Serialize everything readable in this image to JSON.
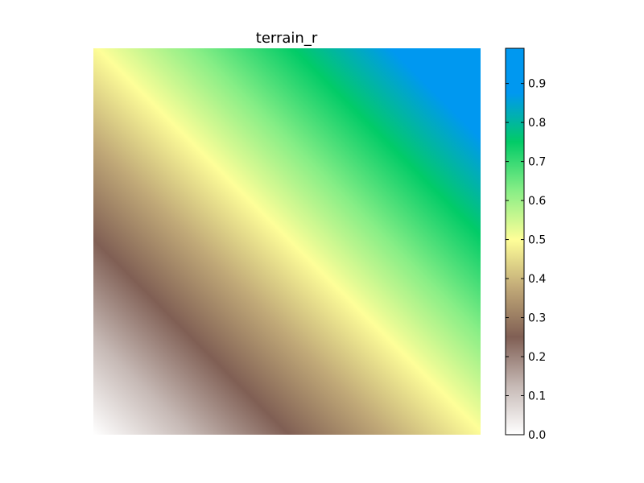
{
  "chart_data": {
    "type": "heatmap",
    "title": "terrain_r",
    "colormap": "terrain_r",
    "description_of_field": "linear gradient increasing from bottom-left (0.0) to top-right (~0.99)",
    "grid": false,
    "axes_visible": false,
    "field": {
      "corner_bottom_left": 0.0,
      "corner_top_right": 0.99
    },
    "colorbar": {
      "position": "right",
      "range": [
        0.0,
        0.99
      ],
      "ticks": [
        {
          "value": 0.0,
          "label": "0.0"
        },
        {
          "value": 0.1,
          "label": "0.1"
        },
        {
          "value": 0.2,
          "label": "0.2"
        },
        {
          "value": 0.3,
          "label": "0.3"
        },
        {
          "value": 0.4,
          "label": "0.4"
        },
        {
          "value": 0.5,
          "label": "0.5"
        },
        {
          "value": 0.6,
          "label": "0.6"
        },
        {
          "value": 0.7,
          "label": "0.7"
        },
        {
          "value": 0.8,
          "label": "0.8"
        },
        {
          "value": 0.9,
          "label": "0.9"
        }
      ]
    },
    "color_stops": [
      {
        "value": 0.0,
        "color": "#ffffff"
      },
      {
        "value": 0.125,
        "color": "#c6b9b5"
      },
      {
        "value": 0.25,
        "color": "#805f54"
      },
      {
        "value": 0.375,
        "color": "#c0a877"
      },
      {
        "value": 0.5,
        "color": "#fefe98"
      },
      {
        "value": 0.625,
        "color": "#88ee86"
      },
      {
        "value": 0.75,
        "color": "#02cb67"
      },
      {
        "value": 0.875,
        "color": "#0098f0"
      },
      {
        "value": 1.0,
        "color": "#333399"
      }
    ]
  }
}
